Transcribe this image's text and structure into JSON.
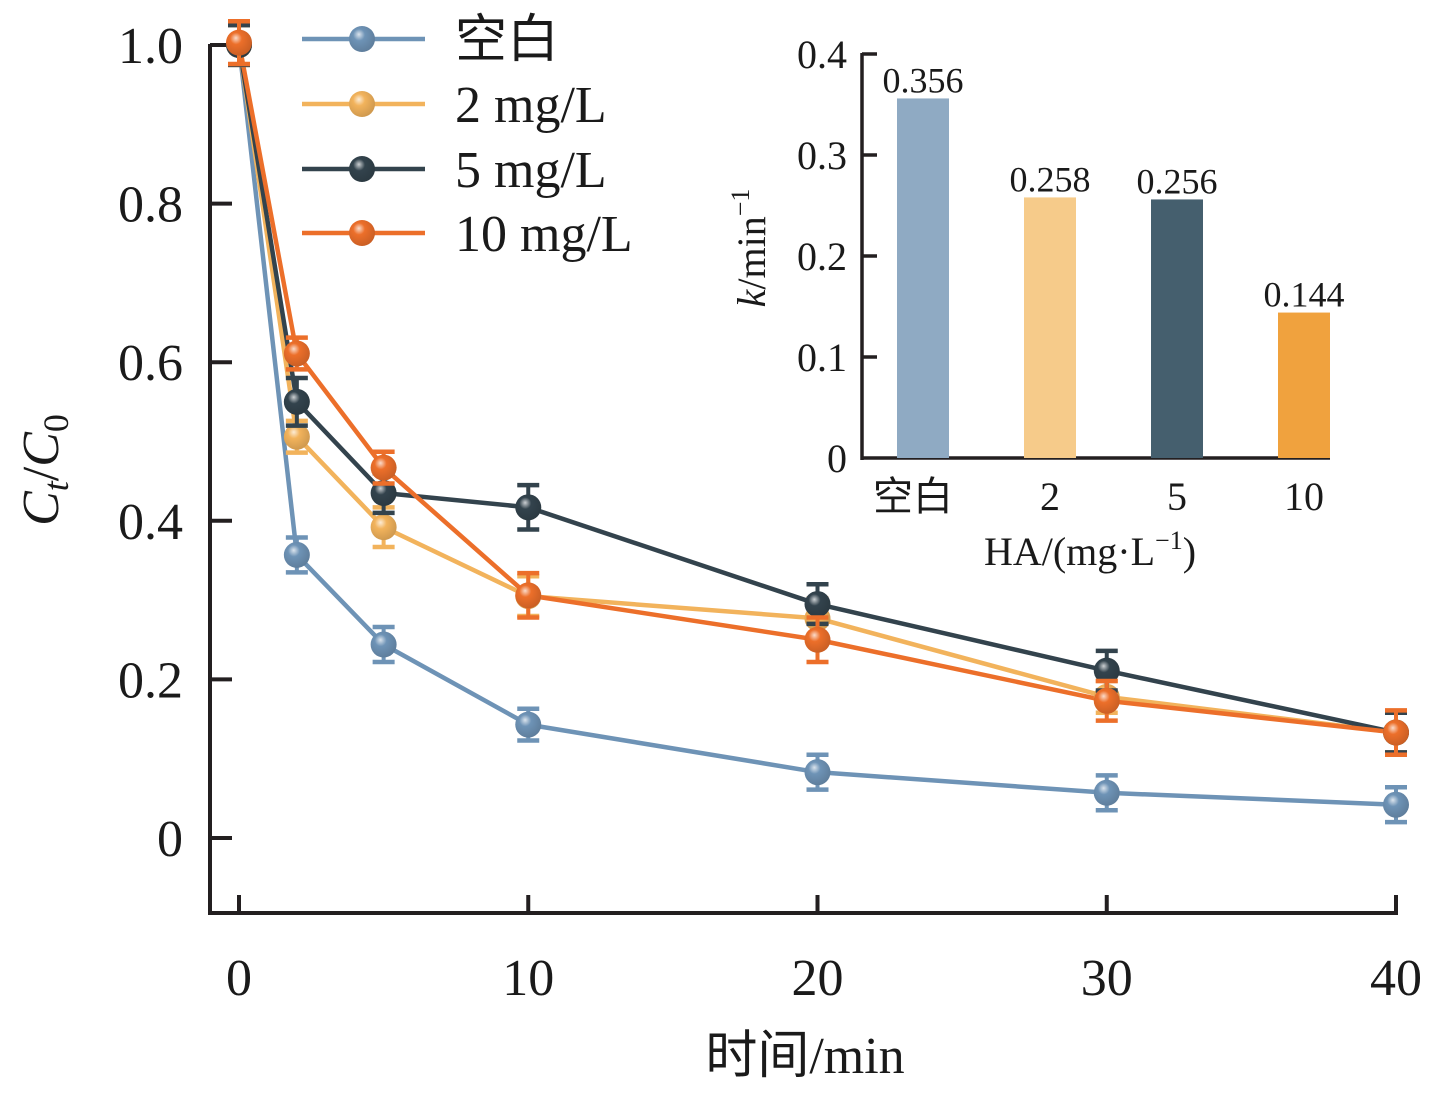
{
  "chart_data": [
    {
      "type": "line",
      "title": "",
      "xlabel": "时间/min",
      "ylabel": "Ct/C0",
      "ylabel_parts": {
        "main": "C",
        "sub1": "t",
        "slash": "/",
        "main2": "C",
        "sub2": "0"
      },
      "xlim": [
        -1,
        40
      ],
      "ylim": [
        -0.095,
        1.0
      ],
      "xticks": [
        0,
        10,
        20,
        30,
        40
      ],
      "xtick_labels": [
        "0",
        "10",
        "20",
        "30",
        "40"
      ],
      "yticks": [
        0,
        0.2,
        0.4,
        0.6,
        0.8,
        1.0
      ],
      "ytick_labels": [
        "0",
        "0.2",
        "0.4",
        "0.6",
        "0.8",
        "1.0"
      ],
      "grid": false,
      "legend_position": "top-left",
      "x": [
        0,
        2,
        5,
        10,
        20,
        30,
        40
      ],
      "series": [
        {
          "name": "空白",
          "color": "#6E93B6",
          "values": [
            1.0,
            0.357,
            0.244,
            0.143,
            0.083,
            0.057,
            0.042
          ],
          "errors": [
            0.025,
            0.022,
            0.022,
            0.02,
            0.022,
            0.022,
            0.022
          ]
        },
        {
          "name": "2 mg/L",
          "color": "#F2B35C",
          "values": [
            1.0,
            0.506,
            0.392,
            0.305,
            0.277,
            0.178,
            0.133
          ],
          "errors": [
            0.025,
            0.02,
            0.025,
            0.025,
            0.025,
            0.02,
            0.025
          ]
        },
        {
          "name": "5 mg/L",
          "color": "#33434D",
          "values": [
            1.0,
            0.55,
            0.435,
            0.417,
            0.295,
            0.211,
            0.133
          ],
          "errors": [
            0.025,
            0.03,
            0.025,
            0.028,
            0.025,
            0.025,
            0.025
          ]
        },
        {
          "name": "10 mg/L",
          "color": "#EC6F2A",
          "values": [
            1.003,
            0.611,
            0.467,
            0.306,
            0.25,
            0.173,
            0.133
          ],
          "errors": [
            0.027,
            0.02,
            0.02,
            0.028,
            0.028,
            0.025,
            0.028
          ]
        }
      ]
    },
    {
      "type": "bar",
      "title": "",
      "xlabel": "HA/(mg·L",
      "xlabel_sup": "−1",
      "xlabel_close": ")",
      "ylabel": "k/min",
      "ylabel_sup": "−1",
      "categories": [
        "空白",
        "2",
        "5",
        "10"
      ],
      "values": [
        0.356,
        0.258,
        0.256,
        0.144
      ],
      "value_labels": [
        "0.356",
        "0.258",
        "0.256",
        "0.144"
      ],
      "colors": [
        "#8FAAC3",
        "#F6CB8A",
        "#455F6E",
        "#F0A23E"
      ],
      "ylim": [
        0,
        0.4
      ],
      "yticks": [
        0,
        0.1,
        0.2,
        0.3,
        0.4
      ],
      "ytick_labels": [
        "0",
        "0.1",
        "0.2",
        "0.3",
        "0.4"
      ],
      "grid": false,
      "placement": "top-right inset"
    }
  ]
}
